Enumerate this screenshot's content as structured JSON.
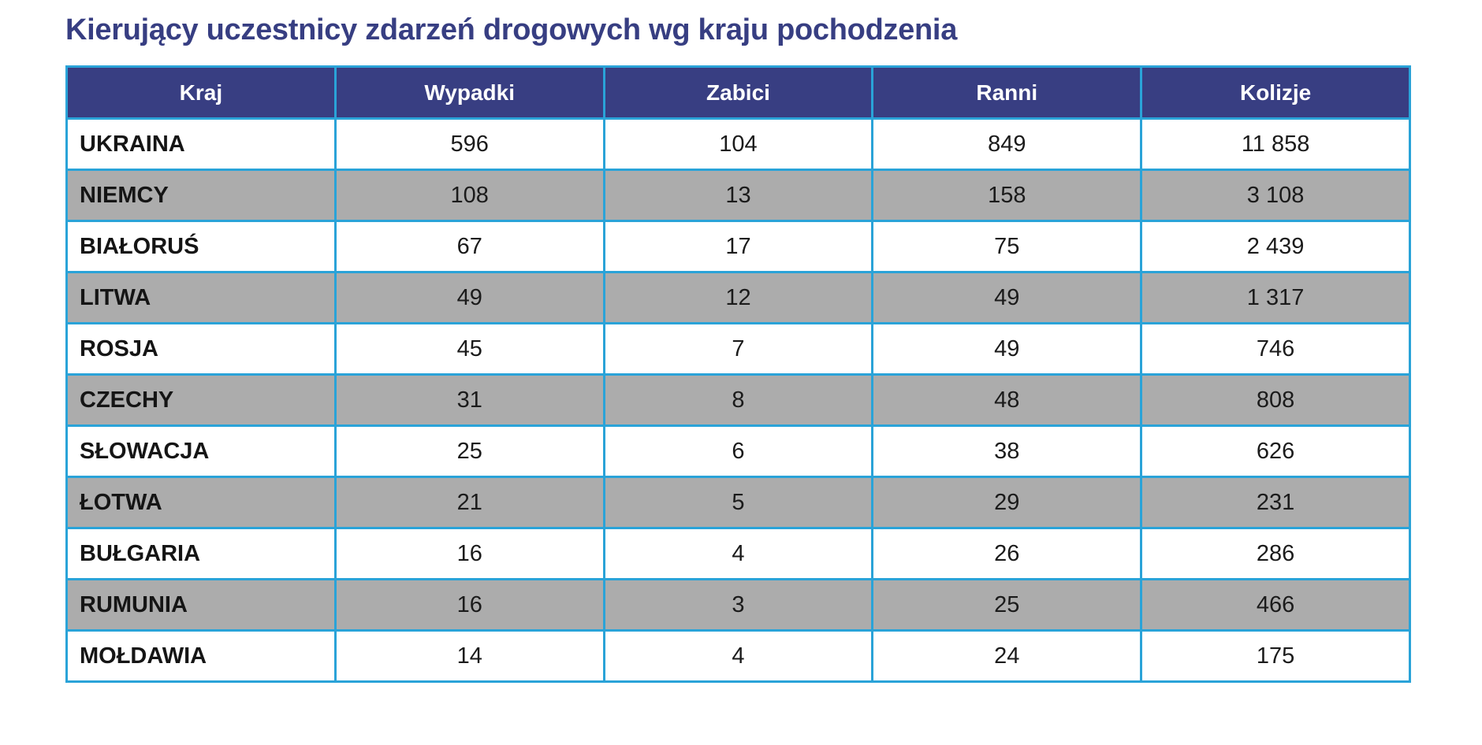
{
  "title": "Kierujący uczestnicy zdarzeń drogowych wg kraju pochodzenia",
  "colors": {
    "title": "#373e82",
    "header_bg": "#383e82",
    "border": "#2aa3d8",
    "stripe": "#acacac"
  },
  "table": {
    "headers": [
      "Kraj",
      "Wypadki",
      "Zabici",
      "Ranni",
      "Kolizje"
    ],
    "rows": [
      [
        "UKRAINA",
        "596",
        "104",
        "849",
        "11 858"
      ],
      [
        "NIEMCY",
        "108",
        "13",
        "158",
        "3 108"
      ],
      [
        "BIAŁORUŚ",
        "67",
        "17",
        "75",
        "2 439"
      ],
      [
        "LITWA",
        "49",
        "12",
        "49",
        "1 317"
      ],
      [
        "ROSJA",
        "45",
        "7",
        "49",
        "746"
      ],
      [
        "CZECHY",
        "31",
        "8",
        "48",
        "808"
      ],
      [
        "SŁOWACJA",
        "25",
        "6",
        "38",
        "626"
      ],
      [
        "ŁOTWA",
        "21",
        "5",
        "29",
        "231"
      ],
      [
        "BUŁGARIA",
        "16",
        "4",
        "26",
        "286"
      ],
      [
        "RUMUNIA",
        "16",
        "3",
        "25",
        "466"
      ],
      [
        "MOŁDAWIA",
        "14",
        "4",
        "24",
        "175"
      ]
    ]
  }
}
